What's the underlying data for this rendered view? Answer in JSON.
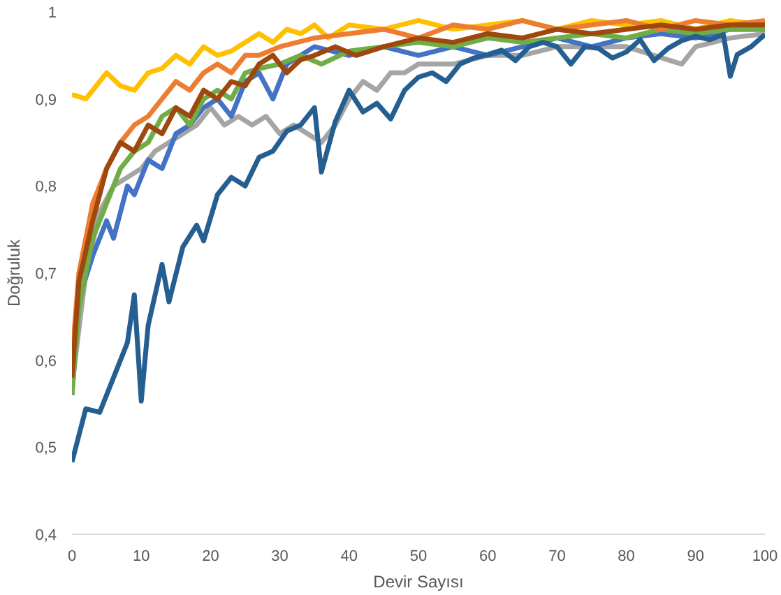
{
  "chart_data": {
    "type": "line",
    "xlabel": "Devir Sayısı",
    "ylabel": "Doğruluk",
    "grid": false,
    "line_style": "solid",
    "xlim": [
      0,
      100
    ],
    "xticks": [
      0,
      10,
      20,
      30,
      40,
      50,
      60,
      70,
      80,
      90,
      100
    ],
    "ylim": [
      0.4,
      1
    ],
    "yticks": [
      {
        "value": 0.4,
        "label": "0,4"
      },
      {
        "value": 0.5,
        "label": "0,5"
      },
      {
        "value": 0.6,
        "label": "0,6"
      },
      {
        "value": 0.7,
        "label": "0,7"
      },
      {
        "value": 0.8,
        "label": "0,8"
      },
      {
        "value": 0.9,
        "label": "0,9"
      },
      {
        "value": 1,
        "label": "1"
      }
    ],
    "series": [
      {
        "color": "#a5a5a5",
        "x": [
          0,
          2,
          4,
          6,
          8,
          10,
          12,
          14,
          16,
          18,
          20,
          22,
          24,
          26,
          28,
          30,
          32,
          34,
          36,
          38,
          40,
          42,
          44,
          46,
          48,
          50,
          55,
          60,
          65,
          70,
          75,
          80,
          84,
          88,
          90,
          95,
          100
        ],
        "values": [
          0.57,
          0.7,
          0.77,
          0.8,
          0.81,
          0.82,
          0.84,
          0.85,
          0.86,
          0.87,
          0.89,
          0.87,
          0.88,
          0.87,
          0.88,
          0.86,
          0.87,
          0.86,
          0.85,
          0.87,
          0.9,
          0.92,
          0.91,
          0.93,
          0.93,
          0.94,
          0.94,
          0.95,
          0.95,
          0.96,
          0.96,
          0.96,
          0.95,
          0.94,
          0.96,
          0.97,
          0.975
        ]
      },
      {
        "color": "#4472c4",
        "x": [
          0,
          1,
          3,
          5,
          6,
          8,
          9,
          11,
          13,
          15,
          17,
          19,
          21,
          23,
          25,
          27,
          29,
          31,
          35,
          40,
          45,
          50,
          55,
          60,
          65,
          70,
          75,
          80,
          85,
          90,
          95,
          100
        ],
        "values": [
          0.56,
          0.67,
          0.72,
          0.76,
          0.74,
          0.8,
          0.79,
          0.83,
          0.82,
          0.86,
          0.87,
          0.89,
          0.9,
          0.88,
          0.92,
          0.93,
          0.9,
          0.94,
          0.96,
          0.95,
          0.96,
          0.95,
          0.96,
          0.95,
          0.96,
          0.97,
          0.96,
          0.97,
          0.975,
          0.97,
          0.98,
          0.98
        ]
      },
      {
        "color": "#70ad47",
        "x": [
          0,
          1,
          3,
          5,
          7,
          9,
          11,
          13,
          15,
          17,
          19,
          21,
          23,
          25,
          27,
          30,
          33,
          36,
          40,
          45,
          50,
          55,
          60,
          65,
          70,
          75,
          80,
          85,
          90,
          95,
          100
        ],
        "values": [
          0.56,
          0.66,
          0.74,
          0.78,
          0.82,
          0.84,
          0.85,
          0.88,
          0.89,
          0.87,
          0.9,
          0.91,
          0.9,
          0.93,
          0.935,
          0.94,
          0.95,
          0.94,
          0.955,
          0.96,
          0.965,
          0.96,
          0.97,
          0.965,
          0.97,
          0.975,
          0.97,
          0.98,
          0.975,
          0.98,
          0.98
        ]
      },
      {
        "color": "#ffc000",
        "x": [
          0,
          2,
          3,
          5,
          7,
          9,
          11,
          13,
          15,
          17,
          19,
          21,
          23,
          25,
          27,
          29,
          31,
          33,
          35,
          37,
          40,
          45,
          50,
          55,
          60,
          65,
          70,
          75,
          80,
          85,
          90,
          95,
          100
        ],
        "values": [
          0.905,
          0.9,
          0.91,
          0.93,
          0.915,
          0.91,
          0.93,
          0.935,
          0.95,
          0.94,
          0.96,
          0.95,
          0.955,
          0.965,
          0.975,
          0.965,
          0.98,
          0.975,
          0.985,
          0.97,
          0.985,
          0.98,
          0.99,
          0.98,
          0.985,
          0.99,
          0.98,
          0.99,
          0.985,
          0.99,
          0.98,
          0.99,
          0.985
        ]
      },
      {
        "color": "#ed7d31",
        "x": [
          0,
          1,
          2,
          3,
          5,
          7,
          9,
          11,
          13,
          15,
          17,
          19,
          21,
          23,
          25,
          27,
          30,
          35,
          40,
          45,
          50,
          55,
          60,
          65,
          70,
          75,
          80,
          85,
          90,
          95,
          100
        ],
        "values": [
          0.6,
          0.7,
          0.74,
          0.78,
          0.82,
          0.85,
          0.87,
          0.88,
          0.9,
          0.92,
          0.91,
          0.93,
          0.94,
          0.93,
          0.95,
          0.95,
          0.96,
          0.97,
          0.975,
          0.98,
          0.97,
          0.985,
          0.98,
          0.99,
          0.98,
          0.985,
          0.99,
          0.98,
          0.99,
          0.985,
          0.99
        ]
      },
      {
        "color": "#255e91",
        "x": [
          0,
          2,
          4,
          6,
          8,
          9,
          10,
          11,
          13,
          14,
          16,
          18,
          19,
          21,
          23,
          25,
          27,
          29,
          31,
          33,
          35,
          36,
          38,
          40,
          42,
          44,
          46,
          48,
          50,
          52,
          54,
          56,
          58,
          60,
          62,
          64,
          66,
          68,
          70,
          72,
          74,
          76,
          78,
          80,
          82,
          84,
          86,
          88,
          90,
          92,
          94,
          95,
          96,
          98,
          100
        ],
        "values": [
          0.483,
          0.544,
          0.54,
          0.58,
          0.62,
          0.675,
          0.553,
          0.64,
          0.71,
          0.667,
          0.73,
          0.755,
          0.737,
          0.79,
          0.81,
          0.8,
          0.833,
          0.84,
          0.863,
          0.87,
          0.89,
          0.816,
          0.874,
          0.91,
          0.885,
          0.895,
          0.877,
          0.91,
          0.925,
          0.93,
          0.92,
          0.94,
          0.947,
          0.951,
          0.956,
          0.944,
          0.96,
          0.965,
          0.96,
          0.94,
          0.96,
          0.958,
          0.947,
          0.954,
          0.968,
          0.944,
          0.958,
          0.967,
          0.972,
          0.968,
          0.974,
          0.926,
          0.951,
          0.96,
          0.974
        ]
      },
      {
        "color": "#9e480e",
        "x": [
          0,
          1,
          3,
          5,
          7,
          9,
          11,
          13,
          15,
          17,
          19,
          21,
          23,
          25,
          27,
          29,
          31,
          33,
          35,
          38,
          41,
          45,
          50,
          55,
          60,
          65,
          70,
          75,
          80,
          85,
          90,
          95,
          100
        ],
        "values": [
          0.58,
          0.69,
          0.76,
          0.82,
          0.85,
          0.84,
          0.87,
          0.86,
          0.89,
          0.88,
          0.91,
          0.9,
          0.92,
          0.915,
          0.94,
          0.95,
          0.93,
          0.945,
          0.95,
          0.96,
          0.95,
          0.96,
          0.97,
          0.965,
          0.975,
          0.97,
          0.98,
          0.975,
          0.98,
          0.985,
          0.98,
          0.985,
          0.985
        ]
      }
    ]
  }
}
